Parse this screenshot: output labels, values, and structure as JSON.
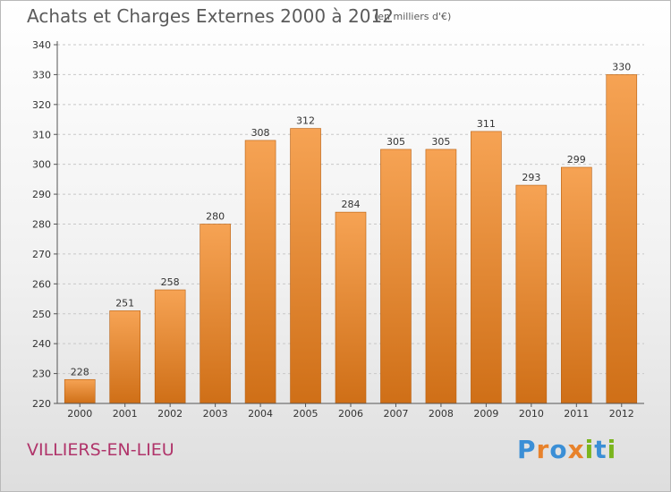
{
  "header": {
    "title": "Achats et Charges Externes 2000 à 2012",
    "unit": "(en milliers d'€)"
  },
  "footer": {
    "commune": "VILLIERS-EN-LIEU",
    "logo": {
      "text": "Proxiti",
      "letter_colors": [
        "#3b8fd6",
        "#e8822b",
        "#3b8fd6",
        "#e8822b",
        "#7ab51d",
        "#3b8fd6",
        "#7ab51d"
      ]
    }
  },
  "colors": {
    "bar_top": "#f6a354",
    "bar_bottom": "#cf6f17",
    "bar_edge": "#b85f10",
    "grid": "#c8c8c8",
    "axis": "#555555"
  },
  "chart_data": {
    "type": "bar",
    "title": "Achats et Charges Externes 2000 à 2012",
    "xlabel": "",
    "ylabel": "",
    "categories": [
      "2000",
      "2001",
      "2002",
      "2003",
      "2004",
      "2005",
      "2006",
      "2007",
      "2008",
      "2009",
      "2010",
      "2011",
      "2012"
    ],
    "values": [
      228,
      251,
      258,
      280,
      308,
      312,
      284,
      305,
      305,
      311,
      293,
      299,
      330
    ],
    "ylim": [
      220,
      340
    ],
    "yticks": [
      220,
      230,
      240,
      250,
      260,
      270,
      280,
      290,
      300,
      310,
      320,
      330,
      340
    ],
    "grid": true,
    "data_labels": true
  }
}
